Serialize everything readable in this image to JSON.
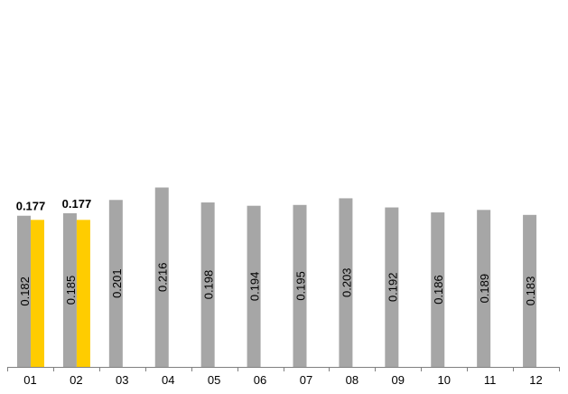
{
  "chart_data": {
    "type": "bar",
    "categories": [
      "01",
      "02",
      "03",
      "04",
      "05",
      "06",
      "07",
      "08",
      "09",
      "10",
      "11",
      "12"
    ],
    "series": [
      {
        "color": "#a6a6a6",
        "values": [
          0.182,
          0.185,
          0.201,
          0.216,
          0.198,
          0.194,
          0.195,
          0.203,
          0.192,
          0.186,
          0.189,
          0.183
        ],
        "labels": [
          "0.182",
          "0.185",
          "0.201",
          "0.216",
          "0.198",
          "0.194",
          "0.195",
          "0.203",
          "0.192",
          "0.186",
          "0.189",
          "0.183"
        ]
      },
      {
        "color": "#ffcc00",
        "values": [
          0.177,
          0.177,
          null,
          null,
          null,
          null,
          null,
          null,
          null,
          null,
          null,
          null
        ],
        "labels": [
          "0.177",
          "0.177",
          null,
          null,
          null,
          null,
          null,
          null,
          null,
          null,
          null,
          null
        ]
      }
    ],
    "ylim": [
      0,
      0.42
    ],
    "grid": false,
    "legend": "none"
  }
}
